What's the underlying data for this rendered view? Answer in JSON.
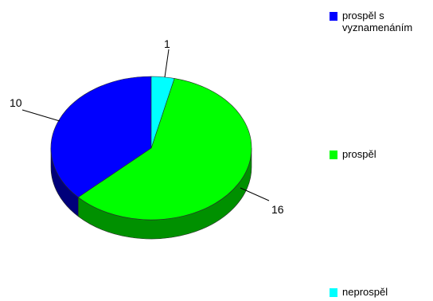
{
  "chart_data": {
    "type": "pie",
    "style": "3d",
    "categories": [
      "prospěl s vyznamenáním",
      "prospěl",
      "neprospěl"
    ],
    "values": [
      10,
      16,
      1
    ],
    "data_labels": [
      "10",
      "16",
      "1"
    ],
    "colors": {
      "prospěl s vyznamenáním": "#0000ff",
      "prospěl": "#00ff00",
      "neprospěl": "#00ffff"
    },
    "side_colors": {
      "prospěl s vyznamenáním": "#00007a",
      "prospěl": "#009000",
      "neprospěl": "#008a8a"
    },
    "legend_position": "right",
    "title": "",
    "xlabel": "",
    "ylabel": ""
  },
  "legend": {
    "items": [
      {
        "label": "prospěl s vyznamenáním",
        "color": "#0000ff"
      },
      {
        "label": "prospěl",
        "color": "#00ff00"
      },
      {
        "label": "neprospěl",
        "color": "#00ffff"
      }
    ]
  }
}
